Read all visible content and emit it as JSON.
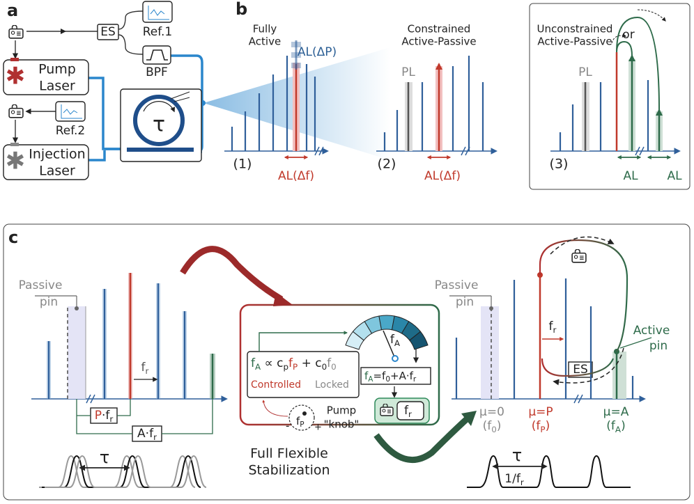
{
  "panels": {
    "a": {
      "label": "a",
      "es": "ES",
      "ref1": "Ref.1",
      "ref2": "Ref.2",
      "bpf": "BPF",
      "pump": [
        "Pump",
        "Laser"
      ],
      "injection": [
        "Injection",
        "Laser"
      ],
      "tau": "τ"
    },
    "b": {
      "label": "b",
      "sub1": {
        "num": "(1)",
        "title": [
          "Fully",
          "Active"
        ],
        "al_top": "AL(ΔP)",
        "al_bottom": "AL(Δf)"
      },
      "sub2": {
        "num": "(2)",
        "title": [
          "Constrained",
          "Active-Passive"
        ],
        "pl": "PL",
        "al_bottom": "AL(Δf)"
      },
      "sub3": {
        "num": "(3)",
        "title": [
          "Unconstrained",
          "Active-Passive"
        ],
        "pl": "PL",
        "or": "or",
        "al1": "AL",
        "al2": "AL"
      }
    },
    "c": {
      "label": "c",
      "left": {
        "passive_pin": [
          "Passive",
          "pin"
        ],
        "fr": [
          {
            "text": "f",
            "sub": "r"
          }
        ],
        "p_fr": [
          {
            "text": "P",
            "sub": ""
          },
          {
            "text": "·f",
            "sub": "r"
          }
        ],
        "a_fr": [
          {
            "text": "A·f",
            "sub": "r"
          }
        ],
        "tau": "τ"
      },
      "center": {
        "formula": [
          {
            "text": "f",
            "sub": "A"
          },
          {
            "text": " ∝ c",
            "sub": "p"
          },
          {
            "text": "f",
            "sub": "P"
          },
          {
            "text": " + c",
            "sub": "0"
          },
          {
            "text": "f",
            "sub": "0"
          }
        ],
        "controlled": "Controlled",
        "locked": "Locked",
        "gauge": [
          {
            "text": "f",
            "sub": "A"
          }
        ],
        "relation": [
          {
            "text": "f",
            "sub": "A"
          },
          {
            "text": "=f",
            "sub": "0"
          },
          {
            "text": "+A·f",
            "sub": "r"
          }
        ],
        "lock_fr": [
          {
            "text": "f",
            "sub": "r"
          }
        ],
        "knob_fp": [
          {
            "text": "f",
            "sub": "P"
          }
        ],
        "minus": "-",
        "plus": "+",
        "knob": [
          "Pump",
          "\"knob\""
        ],
        "caption": [
          "Full Flexible",
          "Stabilization"
        ]
      },
      "right": {
        "passive_pin": [
          "Passive",
          "pin"
        ],
        "fr": [
          {
            "text": "f",
            "sub": "r"
          }
        ],
        "es": "ES",
        "active_pin": [
          "Active",
          "pin"
        ],
        "mu0": "μ=0",
        "f0": [
          {
            "text": "(f",
            "sub": "0"
          },
          {
            "text": ")",
            "sub": ""
          }
        ],
        "muP": "μ=P",
        "fP": [
          {
            "text": "(f",
            "sub": "P"
          },
          {
            "text": ")",
            "sub": ""
          }
        ],
        "muA": "μ=A",
        "fA": [
          {
            "text": "(f",
            "sub": "A"
          },
          {
            "text": ")",
            "sub": ""
          }
        ],
        "tau": "τ",
        "period": [
          {
            "text": "1/f",
            "sub": "r"
          }
        ]
      }
    }
  }
}
